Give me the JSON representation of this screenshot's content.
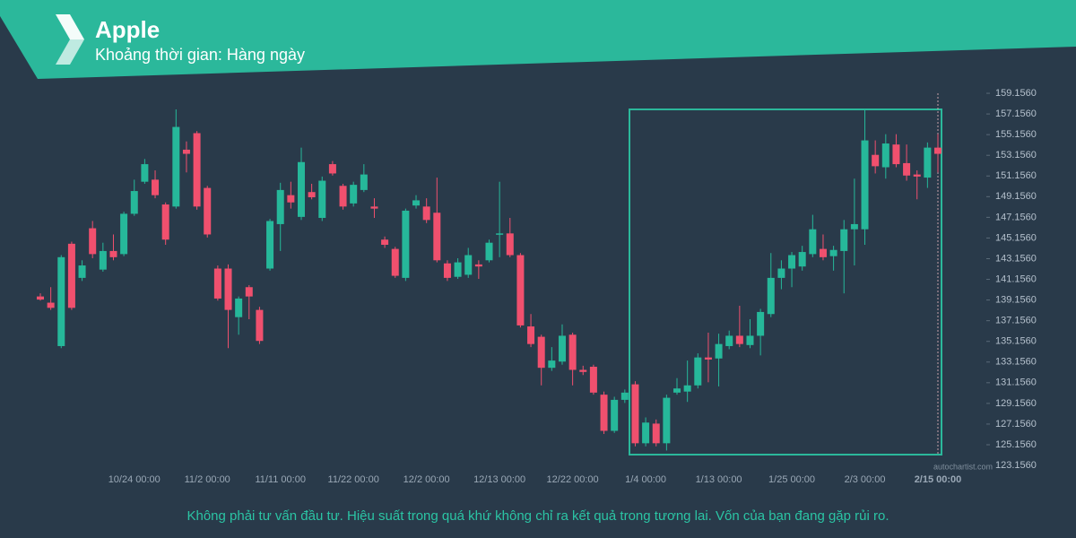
{
  "chart_data": {
    "type": "candlestick",
    "title": "Apple",
    "subtitle": "Khoảng thời gian: Hàng ngày",
    "categories": [
      null,
      null,
      null,
      null,
      null,
      null,
      null,
      null,
      null,
      "10/24 00:00",
      null,
      null,
      null,
      null,
      null,
      null,
      "11/2 00:00",
      null,
      null,
      null,
      null,
      null,
      null,
      "11/11 00:00",
      null,
      null,
      null,
      null,
      null,
      null,
      "11/22 00:00",
      null,
      null,
      null,
      null,
      null,
      null,
      "12/2 00:00",
      null,
      null,
      null,
      null,
      null,
      null,
      "12/13 00:00",
      null,
      null,
      null,
      null,
      null,
      null,
      "12/22 00:00",
      null,
      null,
      null,
      null,
      null,
      null,
      "1/4 00:00",
      null,
      null,
      null,
      null,
      null,
      null,
      "1/13 00:00",
      null,
      null,
      null,
      null,
      null,
      null,
      "1/25 00:00",
      null,
      null,
      null,
      null,
      null,
      null,
      "2/3 00:00",
      null,
      null,
      null,
      null,
      null,
      null,
      "2/15 00:00"
    ],
    "open": [
      139.5,
      138.9,
      134.7,
      144.6,
      141.3,
      146.1,
      142.1,
      143.9,
      143.6,
      147.5,
      150.6,
      150.8,
      148.4,
      148.2,
      153.7,
      155.3,
      150.0,
      142.2,
      142.2,
      137.5,
      140.4,
      138.2,
      142.2,
      146.5,
      149.3,
      147.2,
      149.6,
      147.1,
      152.3,
      150.2,
      148.5,
      149.8,
      148.2,
      145.0,
      144.1,
      141.3,
      148.3,
      148.2,
      147.6,
      142.7,
      141.4,
      141.6,
      142.6,
      143.0,
      145.5,
      145.6,
      143.5,
      136.6,
      135.6,
      132.6,
      133.2,
      135.8,
      132.4,
      132.7,
      130.0,
      126.5,
      129.5,
      131.0,
      125.3,
      127.2,
      125.3,
      130.2,
      130.3,
      130.9,
      133.6,
      133.5,
      134.7,
      135.7,
      134.8,
      135.7,
      137.8,
      141.3,
      142.2,
      142.4,
      143.6,
      144.1,
      143.4,
      143.9,
      146.0,
      146.0,
      153.2,
      152.0,
      154.2,
      152.4,
      151.3,
      151.0,
      153.9
    ],
    "high": [
      139.8,
      140.4,
      143.5,
      144.8,
      143.0,
      146.8,
      144.7,
      145.5,
      147.7,
      150.8,
      152.8,
      151.7,
      148.6,
      157.6,
      154.5,
      155.5,
      150.2,
      142.5,
      142.6,
      139.5,
      140.6,
      138.5,
      147.0,
      150.5,
      150.6,
      153.9,
      150.4,
      151.1,
      152.6,
      150.4,
      150.6,
      152.3,
      149.0,
      145.3,
      144.3,
      148.0,
      149.3,
      149.0,
      151.0,
      143.0,
      143.2,
      144.2,
      143.0,
      145.0,
      150.6,
      147.1,
      143.7,
      137.8,
      135.8,
      134.6,
      136.8,
      136.0,
      132.8,
      132.9,
      130.3,
      129.8,
      130.5,
      131.3,
      127.8,
      127.6,
      130.0,
      131.6,
      133.3,
      134.0,
      136.0,
      135.9,
      136.2,
      138.6,
      137.3,
      138.3,
      143.7,
      143.0,
      143.8,
      144.4,
      147.4,
      145.5,
      144.4,
      146.9,
      150.9,
      157.6,
      154.6,
      155.2,
      155.2,
      154.2,
      151.7,
      154.4,
      155.2
    ],
    "low": [
      139.1,
      138.2,
      134.5,
      138.2,
      141.0,
      143.2,
      141.9,
      143.0,
      143.4,
      147.3,
      150.4,
      149.0,
      144.5,
      148.0,
      151.5,
      147.9,
      145.2,
      139.1,
      134.5,
      135.8,
      137.3,
      134.9,
      142.0,
      143.9,
      148.0,
      146.9,
      148.9,
      146.8,
      151.2,
      147.9,
      148.2,
      149.6,
      147.1,
      144.2,
      141.3,
      141.0,
      148.0,
      146.6,
      142.8,
      141.0,
      141.2,
      141.3,
      141.2,
      142.8,
      143.3,
      143.3,
      136.5,
      134.6,
      130.9,
      132.3,
      132.9,
      130.9,
      131.9,
      130.0,
      126.2,
      126.3,
      129.2,
      125.0,
      125.0,
      125.0,
      124.6,
      130.0,
      129.3,
      130.6,
      131.2,
      130.8,
      134.4,
      134.6,
      134.5,
      133.8,
      137.5,
      140.2,
      140.4,
      142.0,
      143.3,
      143.0,
      142.0,
      139.8,
      142.5,
      144.5,
      151.4,
      150.9,
      152.0,
      150.7,
      148.9,
      150.0,
      151.5
    ],
    "close": [
      139.2,
      138.4,
      143.3,
      138.4,
      142.5,
      143.6,
      143.9,
      143.3,
      147.5,
      149.7,
      152.3,
      149.3,
      145.0,
      155.9,
      153.3,
      148.2,
      145.5,
      139.3,
      138.2,
      139.3,
      139.5,
      135.2,
      146.8,
      149.8,
      148.6,
      152.5,
      149.1,
      150.7,
      151.4,
      148.2,
      150.3,
      151.3,
      148.0,
      144.5,
      141.5,
      147.8,
      148.8,
      146.9,
      143.0,
      141.3,
      142.8,
      143.5,
      142.4,
      144.7,
      145.6,
      143.5,
      136.7,
      134.9,
      132.6,
      133.3,
      135.7,
      132.4,
      132.2,
      130.2,
      126.5,
      129.5,
      130.2,
      125.3,
      127.3,
      125.3,
      129.7,
      130.6,
      130.9,
      133.6,
      133.4,
      134.9,
      135.7,
      134.9,
      135.7,
      138.0,
      141.3,
      142.2,
      143.5,
      143.8,
      146.0,
      143.3,
      144.0,
      146.0,
      146.5,
      154.6,
      152.1,
      154.3,
      152.3,
      151.2,
      151.1,
      153.9,
      153.3
    ],
    "up_color": "#26b89a",
    "down_color": "#f0506e",
    "ylim": [
      122.64,
      159.94
    ],
    "yticks": [
      {
        "value": 123.156,
        "label": "123.1560"
      },
      {
        "value": 125.156,
        "label": "125.1560"
      },
      {
        "value": 127.156,
        "label": "127.1560"
      },
      {
        "value": 129.156,
        "label": "129.1560"
      },
      {
        "value": 131.156,
        "label": "131.1560"
      },
      {
        "value": 133.156,
        "label": "133.1560"
      },
      {
        "value": 135.156,
        "label": "135.1560"
      },
      {
        "value": 137.156,
        "label": "137.1560"
      },
      {
        "value": 139.156,
        "label": "139.1560"
      },
      {
        "value": 141.156,
        "label": "141.1560"
      },
      {
        "value": 143.156,
        "label": "143.1560"
      },
      {
        "value": 145.156,
        "label": "145.1560"
      },
      {
        "value": 147.156,
        "label": "147.1560"
      },
      {
        "value": 149.156,
        "label": "149.1560"
      },
      {
        "value": 151.156,
        "label": "151.1560"
      },
      {
        "value": 153.156,
        "label": "153.1560"
      },
      {
        "value": 155.156,
        "label": "155.1560"
      },
      {
        "value": 157.156,
        "label": "157.1560"
      },
      {
        "value": 159.156,
        "label": "159.1560"
      }
    ],
    "watermark": "autochartist.com"
  },
  "disclaimer": "Không phải tư vấn đầu tư. Hiệu suất trong quá khứ không chỉ ra kết quả trong tương lai. Vốn của bạn đang gặp rủi ro."
}
